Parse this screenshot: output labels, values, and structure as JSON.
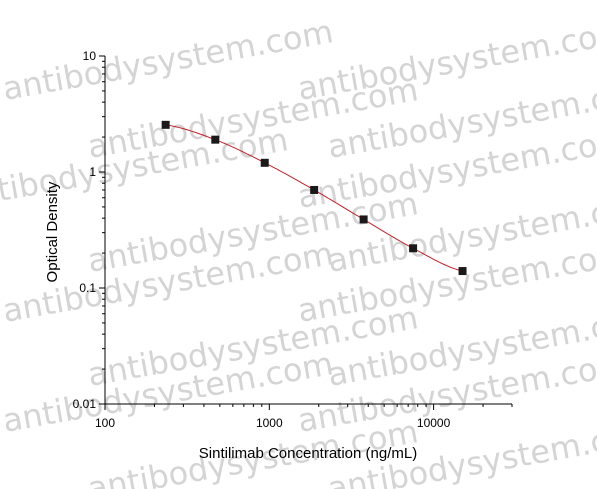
{
  "watermark": "antibodysystem.com",
  "chart_data": {
    "type": "scatter",
    "title": "",
    "xlabel": "Sintilimab Concentration (ng/mL)",
    "ylabel": "Optical Density",
    "x_scale": "log",
    "y_scale": "log",
    "xlim": [
      100,
      30000
    ],
    "ylim": [
      0.01,
      10
    ],
    "x_ticks": [
      100,
      1000,
      10000
    ],
    "x_tick_labels": [
      "100",
      "1000",
      "10000"
    ],
    "y_ticks": [
      0.01,
      0.1,
      1,
      10
    ],
    "y_tick_labels": [
      "0.01",
      "0.1",
      "1",
      "10"
    ],
    "grid": false,
    "series": [
      {
        "x": [
          234,
          469,
          938,
          1875,
          3750,
          7500,
          15000
        ],
        "y": [
          2.55,
          1.9,
          1.2,
          0.7,
          0.39,
          0.22,
          0.14
        ],
        "marker_color": "#1a1a1a",
        "fit_curve_color": "#c0202a"
      }
    ]
  }
}
